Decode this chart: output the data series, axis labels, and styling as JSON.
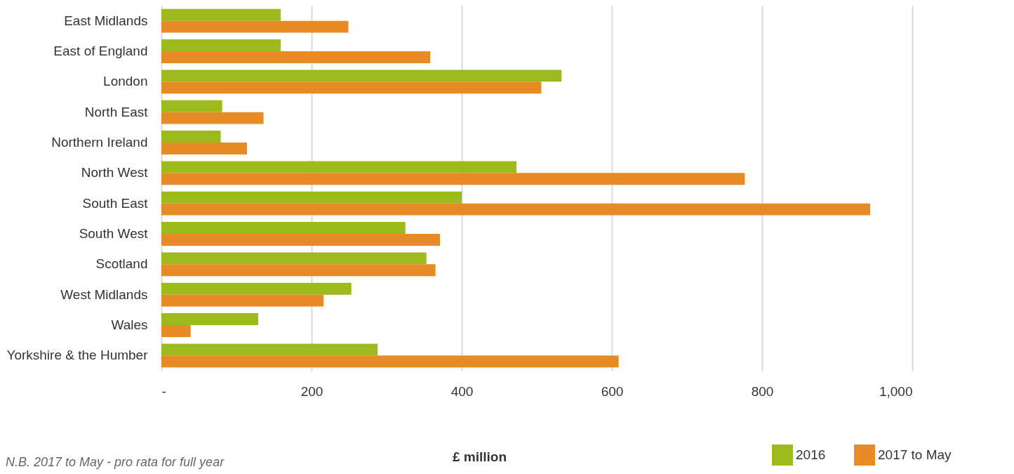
{
  "chart_data": {
    "type": "bar",
    "orientation": "horizontal",
    "xlabel": "£ million",
    "categories": [
      "East Midlands",
      "East of England",
      "London",
      "North East",
      "Northern Ireland",
      "North West",
      "South East",
      "South West",
      "Scotland",
      "West Midlands",
      "Wales",
      "Yorkshire & the Humber"
    ],
    "series": [
      {
        "name": "2016",
        "color": "#9cba1c",
        "values": [
          159,
          159,
          533,
          81,
          79,
          473,
          400,
          325,
          353,
          253,
          129,
          288
        ]
      },
      {
        "name": "2017 to May",
        "color": "#e88a25",
        "values": [
          249,
          358,
          506,
          136,
          114,
          777,
          944,
          371,
          365,
          216,
          39,
          609
        ]
      }
    ],
    "xlim": [
      0,
      1000
    ],
    "xticks": [
      {
        "value": 0,
        "label": "-"
      },
      {
        "value": 200,
        "label": "200"
      },
      {
        "value": 400,
        "label": "400"
      },
      {
        "value": 600,
        "label": "600"
      },
      {
        "value": 800,
        "label": "800"
      },
      {
        "value": 1000,
        "label": "1,000"
      }
    ],
    "grid": "x",
    "legend": "bottom right",
    "annotations": [
      "N.B. 2017 to May - pro rata for full year"
    ]
  }
}
